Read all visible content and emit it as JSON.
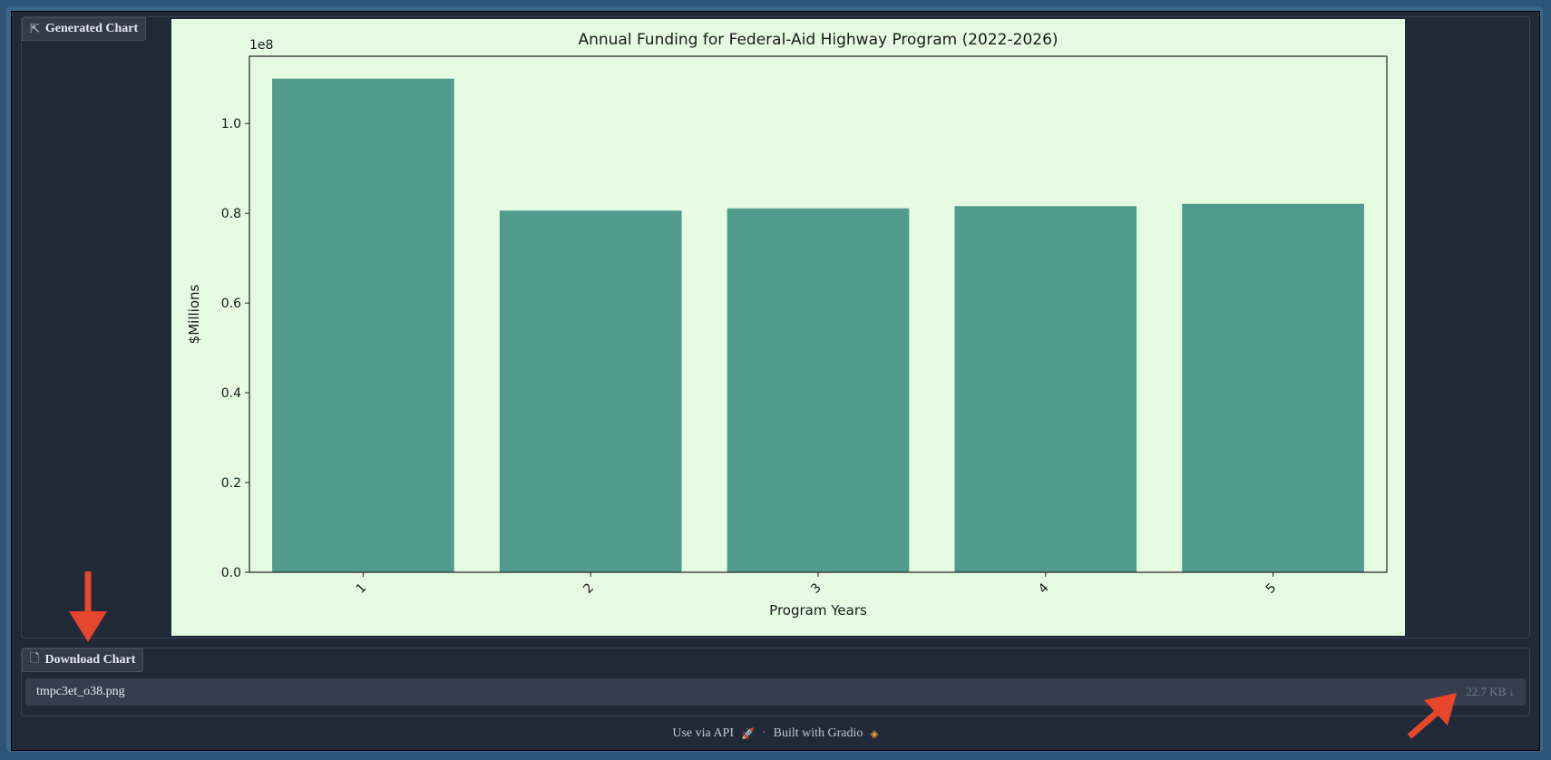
{
  "chart_block": {
    "label": "Generated Chart",
    "icon": "chart-icon"
  },
  "download_block": {
    "label": "Download Chart",
    "icon": "file-icon",
    "file_name": "tmpc3et_o38.png",
    "file_size": "22.7 KB",
    "download_glyph": "↓"
  },
  "footer": {
    "api_link": "Use via API",
    "separator": "·",
    "built_with": "Built with Gradio"
  },
  "colors": {
    "bar": "#519b8e",
    "chart_bg": "#e5fbe2",
    "panel_bg": "#202938",
    "annotation_arrow": "#e8462a"
  },
  "chart_data": {
    "type": "bar",
    "title": "Annual Funding for Federal-Aid Highway Program (2022-2026)",
    "xlabel": "Program Years",
    "ylabel": "$Millions",
    "scale_label": "1e8",
    "categories": [
      "1",
      "2",
      "3",
      "4",
      "5"
    ],
    "values": [
      110,
      80.6,
      81.1,
      81.6,
      82.1
    ],
    "ylim": [
      0,
      115
    ],
    "yticks": [
      0,
      20,
      40,
      60,
      80,
      100
    ],
    "ytick_labels": [
      "0.0",
      "0.2",
      "0.4",
      "0.6",
      "0.8",
      "1.0"
    ],
    "grid": false,
    "legend": "none"
  }
}
